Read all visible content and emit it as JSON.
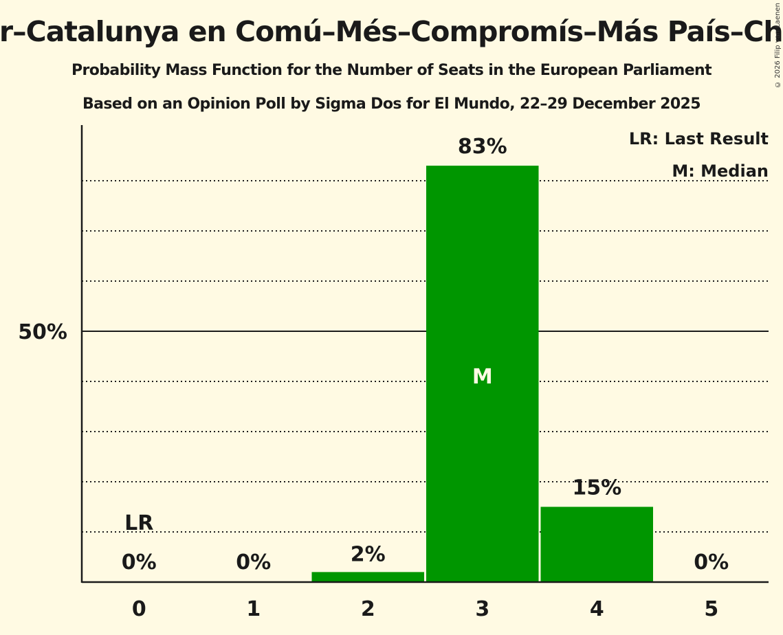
{
  "header": {
    "title": "ar–Catalunya en Comú–Més–Compromís–Más País–Chu",
    "subtitle": "Probability Mass Function for the Number of Seats in the European Parliament",
    "subtitle2": "Based on an Opinion Poll by Sigma Dos for El Mundo, 22–29 December 2025",
    "copyright": "© 2026 Filip van Laenen"
  },
  "legend": {
    "lr": "LR: Last Result",
    "m": "M: Median"
  },
  "colors": {
    "background": "#fffae3",
    "bar": "#009600",
    "axis": "#1a1a1a",
    "median_text": "#fffae3"
  },
  "chart_data": {
    "type": "bar",
    "title": "Probability Mass Function for the Number of Seats in the European Parliament",
    "subtitle": "Based on an Opinion Poll by Sigma Dos for El Mundo, 22–29 December 2025",
    "xlabel": "",
    "ylabel": "",
    "categories": [
      "0",
      "1",
      "2",
      "3",
      "4",
      "5"
    ],
    "values": [
      0,
      0,
      2,
      83,
      15,
      0
    ],
    "value_labels": [
      "0%",
      "0%",
      "2%",
      "83%",
      "15%",
      "0%"
    ],
    "ylim": [
      0,
      90
    ],
    "y_ticks": [
      {
        "value": 50,
        "label": "50%"
      }
    ],
    "gridlines": [
      10,
      20,
      30,
      40,
      60,
      70,
      80
    ],
    "solid_gridline": 50,
    "annotations": [
      {
        "category": "0",
        "text": "LR",
        "meaning": "Last Result"
      },
      {
        "category": "3",
        "text": "M",
        "meaning": "Median"
      }
    ],
    "legend_position": "top-right"
  }
}
